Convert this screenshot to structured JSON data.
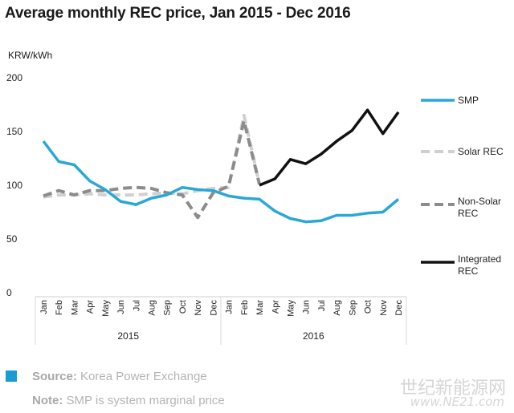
{
  "chart_data": {
    "type": "line",
    "title": "Average monthly REC price, Jan 2015 - Dec 2016",
    "ylabel": "KRW/kWh",
    "ylim": [
      0,
      200
    ],
    "yticks": [
      0,
      50,
      100,
      150,
      200
    ],
    "categories": [
      "Jan",
      "Feb",
      "Mar",
      "Apr",
      "May",
      "Jun",
      "Jul",
      "Aug",
      "Sep",
      "Oct",
      "Nov",
      "Dec",
      "Jan",
      "Feb",
      "Mar",
      "Apr",
      "May",
      "Jun",
      "Jul",
      "Aug",
      "Sep",
      "Oct",
      "Nov",
      "Dec"
    ],
    "year_groups": [
      {
        "label": "2015",
        "start": 0,
        "end": 11
      },
      {
        "label": "2016",
        "start": 12,
        "end": 23
      }
    ],
    "legend_position": "right",
    "grid": false,
    "series": [
      {
        "name": "SMP",
        "color": "#29a8d8",
        "style": "solid",
        "values": [
          141,
          122,
          119,
          104,
          96,
          85,
          82,
          88,
          91,
          98,
          96,
          95,
          90,
          88,
          87,
          76,
          69,
          66,
          67,
          72,
          72,
          74,
          75,
          87
        ]
      },
      {
        "name": "Solar REC",
        "color": "#d0d0d0",
        "style": "dashed",
        "values": [
          89,
          91,
          91,
          92,
          91,
          91,
          91,
          92,
          93,
          92,
          95,
          97,
          98,
          165,
          101,
          null,
          null,
          null,
          null,
          null,
          null,
          null,
          null,
          null
        ]
      },
      {
        "name": "Non-Solar REC",
        "color": "#8c8c8c",
        "style": "dashed",
        "values": [
          90,
          95,
          91,
          95,
          95,
          97,
          98,
          97,
          93,
          91,
          70,
          93,
          99,
          160,
          101,
          null,
          null,
          null,
          null,
          null,
          null,
          null,
          null,
          null
        ]
      },
      {
        "name": "Integrated REC",
        "color": "#111111",
        "style": "solid",
        "values": [
          null,
          null,
          null,
          null,
          null,
          null,
          null,
          null,
          null,
          null,
          null,
          null,
          null,
          null,
          100,
          106,
          124,
          120,
          129,
          141,
          151,
          170,
          148,
          168
        ]
      }
    ]
  },
  "footer": {
    "source_label": "Source:",
    "source_text": "Korea Power Exchange",
    "note_label": "Note:",
    "note_text": "SMP is system marginal price",
    "accent_color": "#1a9bd1"
  },
  "watermark": {
    "text": "世纪新能源网",
    "url": "www.NE21.com"
  }
}
